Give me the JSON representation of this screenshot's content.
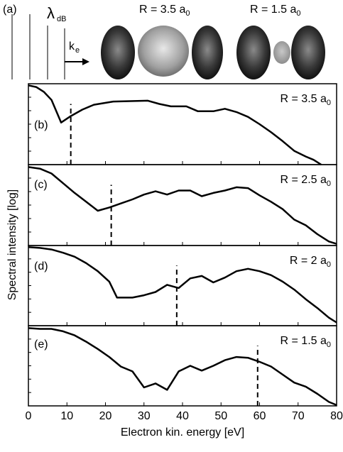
{
  "panel_a": {
    "letter": "(a)",
    "lambda": "λ",
    "lambda_sub": "dB",
    "k": "k",
    "k_sub": "e",
    "left_label": "R = 3.5 a",
    "left_label_sub": "0",
    "right_label": "R = 1.5 a",
    "right_label_sub": "0"
  },
  "figure": {
    "x_label": "Electron kin. energy [eV]",
    "y_label": "Spectral intensity [log]"
  },
  "chart_data": [
    {
      "type": "line",
      "panel": "(b)",
      "label": "R = 3.5 a",
      "label_sub": "0",
      "color": "#000000",
      "x": [
        0,
        2,
        4,
        6,
        8.5,
        11,
        14,
        17,
        22,
        31,
        34,
        37,
        41,
        44,
        48,
        51,
        54,
        57,
        60,
        63,
        66,
        69,
        72,
        74,
        76
      ],
      "values": [
        0.98,
        0.96,
        0.9,
        0.8,
        0.52,
        0.6,
        0.68,
        0.74,
        0.78,
        0.79,
        0.75,
        0.72,
        0.72,
        0.66,
        0.66,
        0.69,
        0.65,
        0.59,
        0.5,
        0.4,
        0.29,
        0.17,
        0.1,
        0.06,
        0
      ],
      "dashed_x": 11,
      "xlim": [
        0,
        80
      ],
      "xticks": [
        0,
        10,
        20,
        30,
        40,
        50,
        60,
        70,
        80
      ],
      "ylim": [
        0,
        1
      ]
    },
    {
      "type": "line",
      "panel": "(c)",
      "label": "R = 2.5 a",
      "label_sub": "0",
      "color": "#000000",
      "x": [
        0,
        3,
        6,
        9,
        12,
        15,
        18,
        21,
        24,
        27,
        30,
        33,
        36,
        39,
        42,
        45,
        48,
        51,
        54,
        57,
        60,
        63,
        66,
        69,
        72,
        75,
        78,
        80
      ],
      "values": [
        0.97,
        0.95,
        0.89,
        0.77,
        0.65,
        0.54,
        0.43,
        0.47,
        0.52,
        0.57,
        0.63,
        0.67,
        0.63,
        0.68,
        0.68,
        0.61,
        0.65,
        0.68,
        0.72,
        0.71,
        0.62,
        0.54,
        0.45,
        0.32,
        0.25,
        0.14,
        0.05,
        0.02
      ],
      "dashed_x": 21.5,
      "xlim": [
        0,
        80
      ],
      "xticks": [
        0,
        10,
        20,
        30,
        40,
        50,
        60,
        70,
        80
      ],
      "ylim": [
        0,
        1
      ]
    },
    {
      "type": "line",
      "panel": "(d)",
      "label": "R = 2 a",
      "label_sub": "0",
      "color": "#000000",
      "x": [
        0,
        3,
        6,
        9,
        12,
        15,
        18,
        21,
        23,
        27,
        30,
        33,
        36,
        39,
        42,
        45,
        48,
        51,
        54,
        57,
        60,
        63,
        66,
        69,
        72,
        75,
        78,
        80
      ],
      "values": [
        0.98,
        0.97,
        0.95,
        0.91,
        0.86,
        0.78,
        0.68,
        0.55,
        0.35,
        0.35,
        0.38,
        0.42,
        0.51,
        0.47,
        0.59,
        0.62,
        0.54,
        0.6,
        0.68,
        0.71,
        0.68,
        0.63,
        0.55,
        0.45,
        0.33,
        0.22,
        0.1,
        0.04
      ],
      "dashed_x": 38.5,
      "xlim": [
        0,
        80
      ],
      "xticks": [
        0,
        10,
        20,
        30,
        40,
        50,
        60,
        70,
        80
      ],
      "ylim": [
        0,
        1
      ]
    },
    {
      "type": "line",
      "panel": "(e)",
      "label": "R = 1.5 a",
      "label_sub": "0",
      "color": "#000000",
      "x": [
        0,
        3,
        6,
        9,
        12,
        15,
        18,
        21,
        24,
        27,
        30,
        33,
        36,
        39,
        42,
        45,
        48,
        51,
        54,
        57,
        60,
        63,
        66,
        69,
        72,
        75,
        78,
        80
      ],
      "values": [
        0.97,
        0.96,
        0.96,
        0.93,
        0.88,
        0.8,
        0.71,
        0.61,
        0.49,
        0.43,
        0.23,
        0.28,
        0.2,
        0.43,
        0.5,
        0.44,
        0.5,
        0.57,
        0.61,
        0.6,
        0.55,
        0.49,
        0.39,
        0.29,
        0.24,
        0.15,
        0.05,
        0.01
      ],
      "dashed_x": 59.5,
      "xlim": [
        0,
        80
      ],
      "xticks": [
        0,
        10,
        20,
        30,
        40,
        50,
        60,
        70,
        80
      ],
      "ylim": [
        0,
        1
      ]
    }
  ]
}
